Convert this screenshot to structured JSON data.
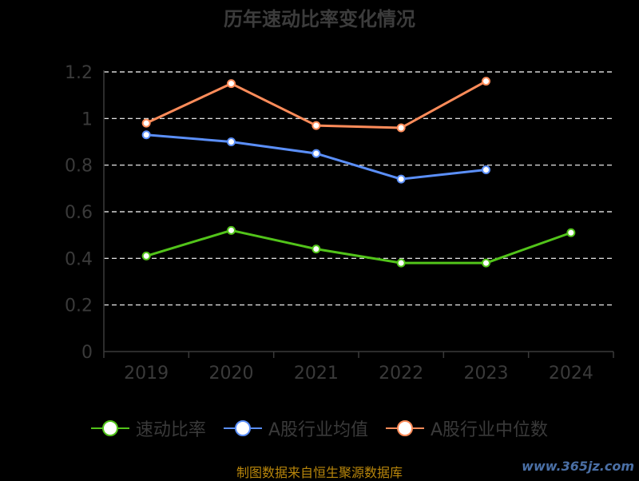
{
  "chart_data": {
    "type": "line",
    "title": "历年速动比率变化情况",
    "categories": [
      "2019",
      "2020",
      "2021",
      "2022",
      "2023",
      "2024"
    ],
    "ylim": [
      0,
      1.2
    ],
    "yticks": [
      "0",
      "0.2",
      "0.4",
      "0.6",
      "0.8",
      "1",
      "1.2"
    ],
    "grid": true,
    "legend_position": "bottom",
    "series": [
      {
        "name": "速动比率",
        "color": "#52c41a",
        "values": [
          0.41,
          0.52,
          0.44,
          0.38,
          0.38,
          0.51
        ]
      },
      {
        "name": "A股行业均值",
        "color": "#5b8ff9",
        "values": [
          0.93,
          0.9,
          0.85,
          0.74,
          0.78,
          null
        ]
      },
      {
        "name": "A股行业中位数",
        "color": "#ff8c5a",
        "values": [
          0.98,
          1.15,
          0.97,
          0.96,
          1.16,
          null
        ]
      }
    ]
  },
  "footer": {
    "source": "制图数据来自恒生聚源数据库",
    "watermark": "www.365jz.com"
  }
}
